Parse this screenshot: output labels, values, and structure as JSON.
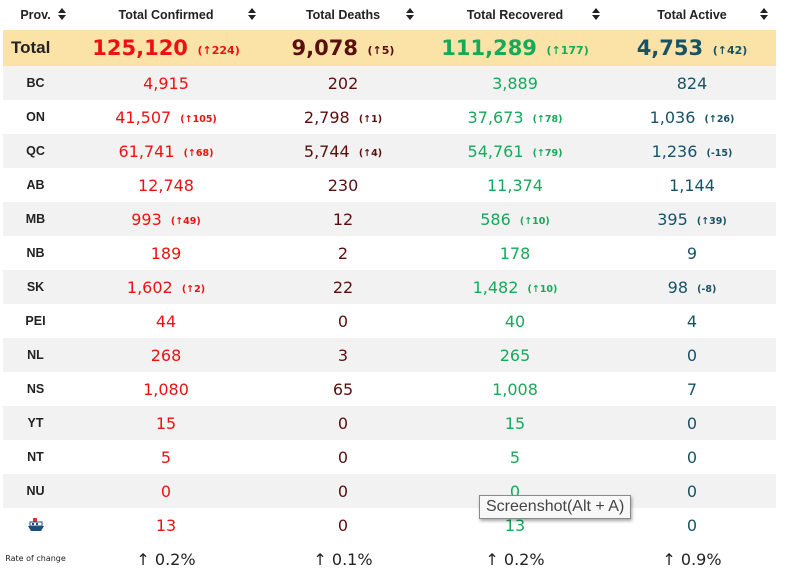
{
  "headers": {
    "prov": "Prov.",
    "confirmed": "Total Confirmed",
    "deaths": "Total Deaths",
    "recovered": "Total Recovered",
    "active": "Total Active"
  },
  "total": {
    "label": "Total",
    "confirmed": "125,120",
    "confirmed_change": "(↑224)",
    "deaths": "9,078",
    "deaths_change": "(↑5)",
    "recovered": "111,289",
    "recovered_change": "(↑177)",
    "active": "4,753",
    "active_change": "(↑42)"
  },
  "rows": [
    {
      "prov": "BC",
      "confirmed": "4,915",
      "confirmed_change": "",
      "deaths": "202",
      "deaths_change": "",
      "recovered": "3,889",
      "recovered_change": "",
      "active": "824",
      "active_change": ""
    },
    {
      "prov": "ON",
      "confirmed": "41,507",
      "confirmed_change": "(↑105)",
      "deaths": "2,798",
      "deaths_change": "(↑1)",
      "recovered": "37,673",
      "recovered_change": "(↑78)",
      "active": "1,036",
      "active_change": "(↑26)"
    },
    {
      "prov": "QC",
      "confirmed": "61,741",
      "confirmed_change": "(↑68)",
      "deaths": "5,744",
      "deaths_change": "(↑4)",
      "recovered": "54,761",
      "recovered_change": "(↑79)",
      "active": "1,236",
      "active_change": "(-15)"
    },
    {
      "prov": "AB",
      "confirmed": "12,748",
      "confirmed_change": "",
      "deaths": "230",
      "deaths_change": "",
      "recovered": "11,374",
      "recovered_change": "",
      "active": "1,144",
      "active_change": ""
    },
    {
      "prov": "MB",
      "confirmed": "993",
      "confirmed_change": "(↑49)",
      "deaths": "12",
      "deaths_change": "",
      "recovered": "586",
      "recovered_change": "(↑10)",
      "active": "395",
      "active_change": "(↑39)"
    },
    {
      "prov": "NB",
      "confirmed": "189",
      "confirmed_change": "",
      "deaths": "2",
      "deaths_change": "",
      "recovered": "178",
      "recovered_change": "",
      "active": "9",
      "active_change": ""
    },
    {
      "prov": "SK",
      "confirmed": "1,602",
      "confirmed_change": "(↑2)",
      "deaths": "22",
      "deaths_change": "",
      "recovered": "1,482",
      "recovered_change": "(↑10)",
      "active": "98",
      "active_change": "(-8)"
    },
    {
      "prov": "PEI",
      "confirmed": "44",
      "confirmed_change": "",
      "deaths": "0",
      "deaths_change": "",
      "recovered": "40",
      "recovered_change": "",
      "active": "4",
      "active_change": ""
    },
    {
      "prov": "NL",
      "confirmed": "268",
      "confirmed_change": "",
      "deaths": "3",
      "deaths_change": "",
      "recovered": "265",
      "recovered_change": "",
      "active": "0",
      "active_change": ""
    },
    {
      "prov": "NS",
      "confirmed": "1,080",
      "confirmed_change": "",
      "deaths": "65",
      "deaths_change": "",
      "recovered": "1,008",
      "recovered_change": "",
      "active": "7",
      "active_change": ""
    },
    {
      "prov": "YT",
      "confirmed": "15",
      "confirmed_change": "",
      "deaths": "0",
      "deaths_change": "",
      "recovered": "15",
      "recovered_change": "",
      "active": "0",
      "active_change": ""
    },
    {
      "prov": "NT",
      "confirmed": "5",
      "confirmed_change": "",
      "deaths": "0",
      "deaths_change": "",
      "recovered": "5",
      "recovered_change": "",
      "active": "0",
      "active_change": ""
    },
    {
      "prov": "NU",
      "confirmed": "0",
      "confirmed_change": "",
      "deaths": "0",
      "deaths_change": "",
      "recovered": "0",
      "recovered_change": "",
      "active": "0",
      "active_change": ""
    },
    {
      "prov": "",
      "prov_icon": "cruise-ship-icon",
      "confirmed": "13",
      "confirmed_change": "",
      "deaths": "0",
      "deaths_change": "",
      "recovered": "13",
      "recovered_change": "",
      "active": "0",
      "active_change": ""
    }
  ],
  "rate": {
    "label": "Rate of change",
    "confirmed": "↑ 0.2%",
    "deaths": "↑ 0.1%",
    "recovered": "↑ 0.2%",
    "active": "↑ 0.9%"
  },
  "tooltip": "Screenshot(Alt + A)",
  "colors": {
    "confirmed": "#ee1111",
    "deaths": "#5a0f0f",
    "recovered": "#16a95a",
    "active": "#175266",
    "total_row_bg": "#fbe3a8",
    "stripe_bg": "#f2f2f2"
  }
}
